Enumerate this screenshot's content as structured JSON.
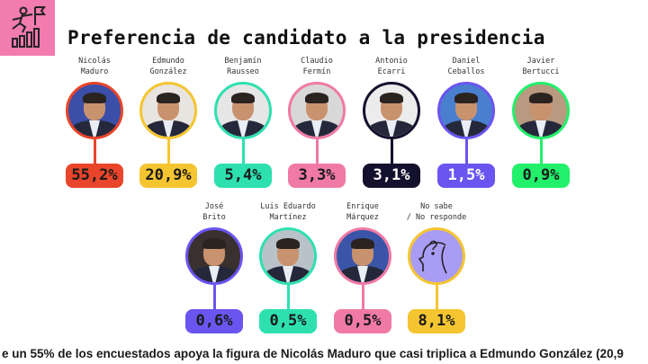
{
  "header": {
    "title": "Preferencia de candidato a la presidencia",
    "icon": "climbing-bars-flag-icon"
  },
  "candidates": [
    {
      "name1": "Nicolás",
      "name2": "Maduro",
      "pct": "55,2%",
      "color": "#e8452a",
      "text": "#1a1a1a",
      "bg": "#3b4ea8"
    },
    {
      "name1": "Edmundo",
      "name2": "González",
      "pct": "20,9%",
      "color": "#f5c531",
      "text": "#1a1a1a",
      "bg": "#e8e4df"
    },
    {
      "name1": "Benjamín",
      "name2": "Rausseo",
      "pct": "5,4%",
      "color": "#2ee0b0",
      "text": "#1a1a1a",
      "bg": "#e6e6e6"
    },
    {
      "name1": "Claudio",
      "name2": "Fermín",
      "pct": "3,3%",
      "color": "#f07aa5",
      "text": "#1a1a1a",
      "bg": "#d8d8d8"
    },
    {
      "name1": "Antonio",
      "name2": "Ecarri",
      "pct": "3,1%",
      "color": "#14112e",
      "text": "#ffffff",
      "bg": "#ececec"
    },
    {
      "name1": "Daniel",
      "name2": "Ceballos",
      "pct": "1,5%",
      "color": "#6a55f0",
      "text": "#ffffff",
      "bg": "#4a7fd0"
    },
    {
      "name1": "Javier",
      "name2": "Bertucci",
      "pct": "0,9%",
      "color": "#22f06a",
      "text": "#1a1a1a",
      "bg": "#b89a80"
    },
    {
      "name1": "José",
      "name2": "Brito",
      "pct": "0,6%",
      "color": "#6a55f0",
      "text": "#1a1a1a",
      "bg": "#3a3030"
    },
    {
      "name1": "Luis Eduardo",
      "name2": "Martínez",
      "pct": "0,5%",
      "color": "#2ee0b0",
      "text": "#1a1a1a",
      "bg": "#b8c2c8"
    },
    {
      "name1": "Enrique",
      "name2": "Márquez",
      "pct": "0,5%",
      "color": "#f07aa5",
      "text": "#1a1a1a",
      "bg": "#3a55a8"
    },
    {
      "name1": "No sabe",
      "name2": "/ No responde",
      "pct": "8,1%",
      "color": "#f5c531",
      "text": "#1a1a1a",
      "bg": "#a99cf5"
    }
  ],
  "caption": "e un 55% de los encuestados apoya la figura de Nicolás Maduro que casi triplica a Edmundo González (20,9"
}
